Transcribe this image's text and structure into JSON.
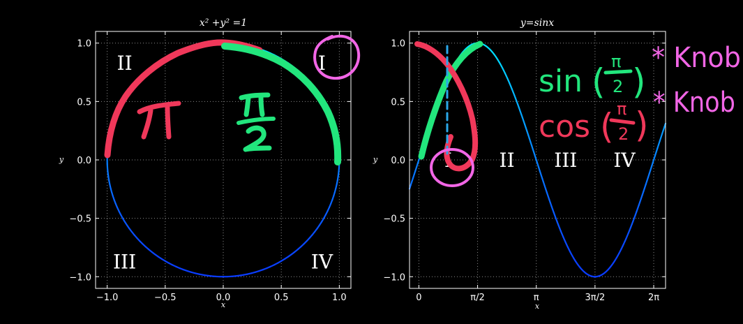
{
  "chart_data": [
    {
      "type": "line",
      "title": "x² +y² =1",
      "xlabel": "x",
      "ylabel": "y",
      "xlim": [
        -1.1,
        1.1
      ],
      "ylim": [
        -1.1,
        1.1
      ],
      "xticks": [
        "−1.0",
        "−0.5",
        "0.0",
        "0.5",
        "1.0"
      ],
      "xtick_values": [
        -1.0,
        -0.5,
        0.0,
        0.5,
        1.0
      ],
      "yticks": [
        "−1.0",
        "−0.5",
        "0.0",
        "0.5",
        "1.0"
      ],
      "ytick_values": [
        -1.0,
        -0.5,
        0.0,
        0.5,
        1.0
      ],
      "grid": true,
      "series_description": "unit circle, parametric x=cos(t), y=sin(t), t in [0, 2π]",
      "series": [
        {
          "x": [
            1,
            0.707,
            0,
            -0.707,
            -1,
            -0.707,
            0,
            0.707,
            1
          ],
          "y": [
            0,
            0.707,
            1,
            0.707,
            0,
            -0.707,
            -1,
            -0.707,
            0
          ]
        }
      ],
      "quadrant_labels": [
        {
          "text": "I",
          "x": 0.85,
          "y": 0.83
        },
        {
          "text": "II",
          "x": -0.85,
          "y": 0.83
        },
        {
          "text": "III",
          "x": -0.85,
          "y": -0.87
        },
        {
          "text": "IV",
          "x": 0.85,
          "y": -0.87
        }
      ],
      "colors": {
        "upper_half": "#00e5ff",
        "lower_half": "#0a3cff"
      }
    },
    {
      "type": "line",
      "title": "y=sinx",
      "xlabel": "x",
      "ylabel": "y",
      "xlim": [
        -0.25,
        6.6
      ],
      "ylim": [
        -1.1,
        1.1
      ],
      "xticks": [
        "0",
        "π/2",
        "π",
        "3π/2",
        "2π"
      ],
      "xtick_values": [
        0,
        1.5708,
        3.1416,
        4.7124,
        6.2832
      ],
      "yticks": [
        "−1.0",
        "−0.5",
        "0.0",
        "0.5",
        "1.0"
      ],
      "ytick_values": [
        -1.0,
        -0.5,
        0.0,
        0.5,
        1.0
      ],
      "grid": true,
      "series_description": "y = sin(x), x in [-0.25, 6.6]",
      "series": [
        {
          "x": [
            0,
            1.5708,
            3.1416,
            4.7124,
            6.2832
          ],
          "y": [
            0,
            1,
            0,
            -1,
            0
          ]
        }
      ],
      "quadrant_labels": [
        {
          "text": "I",
          "x": 0.785
        },
        {
          "text": "II",
          "x": 2.356
        },
        {
          "text": "III",
          "x": 3.927
        },
        {
          "text": "IV",
          "x": 5.498
        }
      ],
      "colors": {
        "upper": "#00e5ff",
        "lower": "#0a3cff"
      }
    }
  ],
  "annotations": {
    "left_pi": "π",
    "left_pi_over_2_num": "π",
    "left_pi_over_2_den": "2",
    "sin_text": "sin",
    "cos_text": "cos",
    "knob_1": "* Knob",
    "knob_2": "* Knob",
    "frac_num": "π",
    "frac_den": "2",
    "colors": {
      "red": "#f0385a",
      "green": "#22e67d",
      "pink": "#f266e6",
      "blue": "#2aa7e8"
    }
  }
}
